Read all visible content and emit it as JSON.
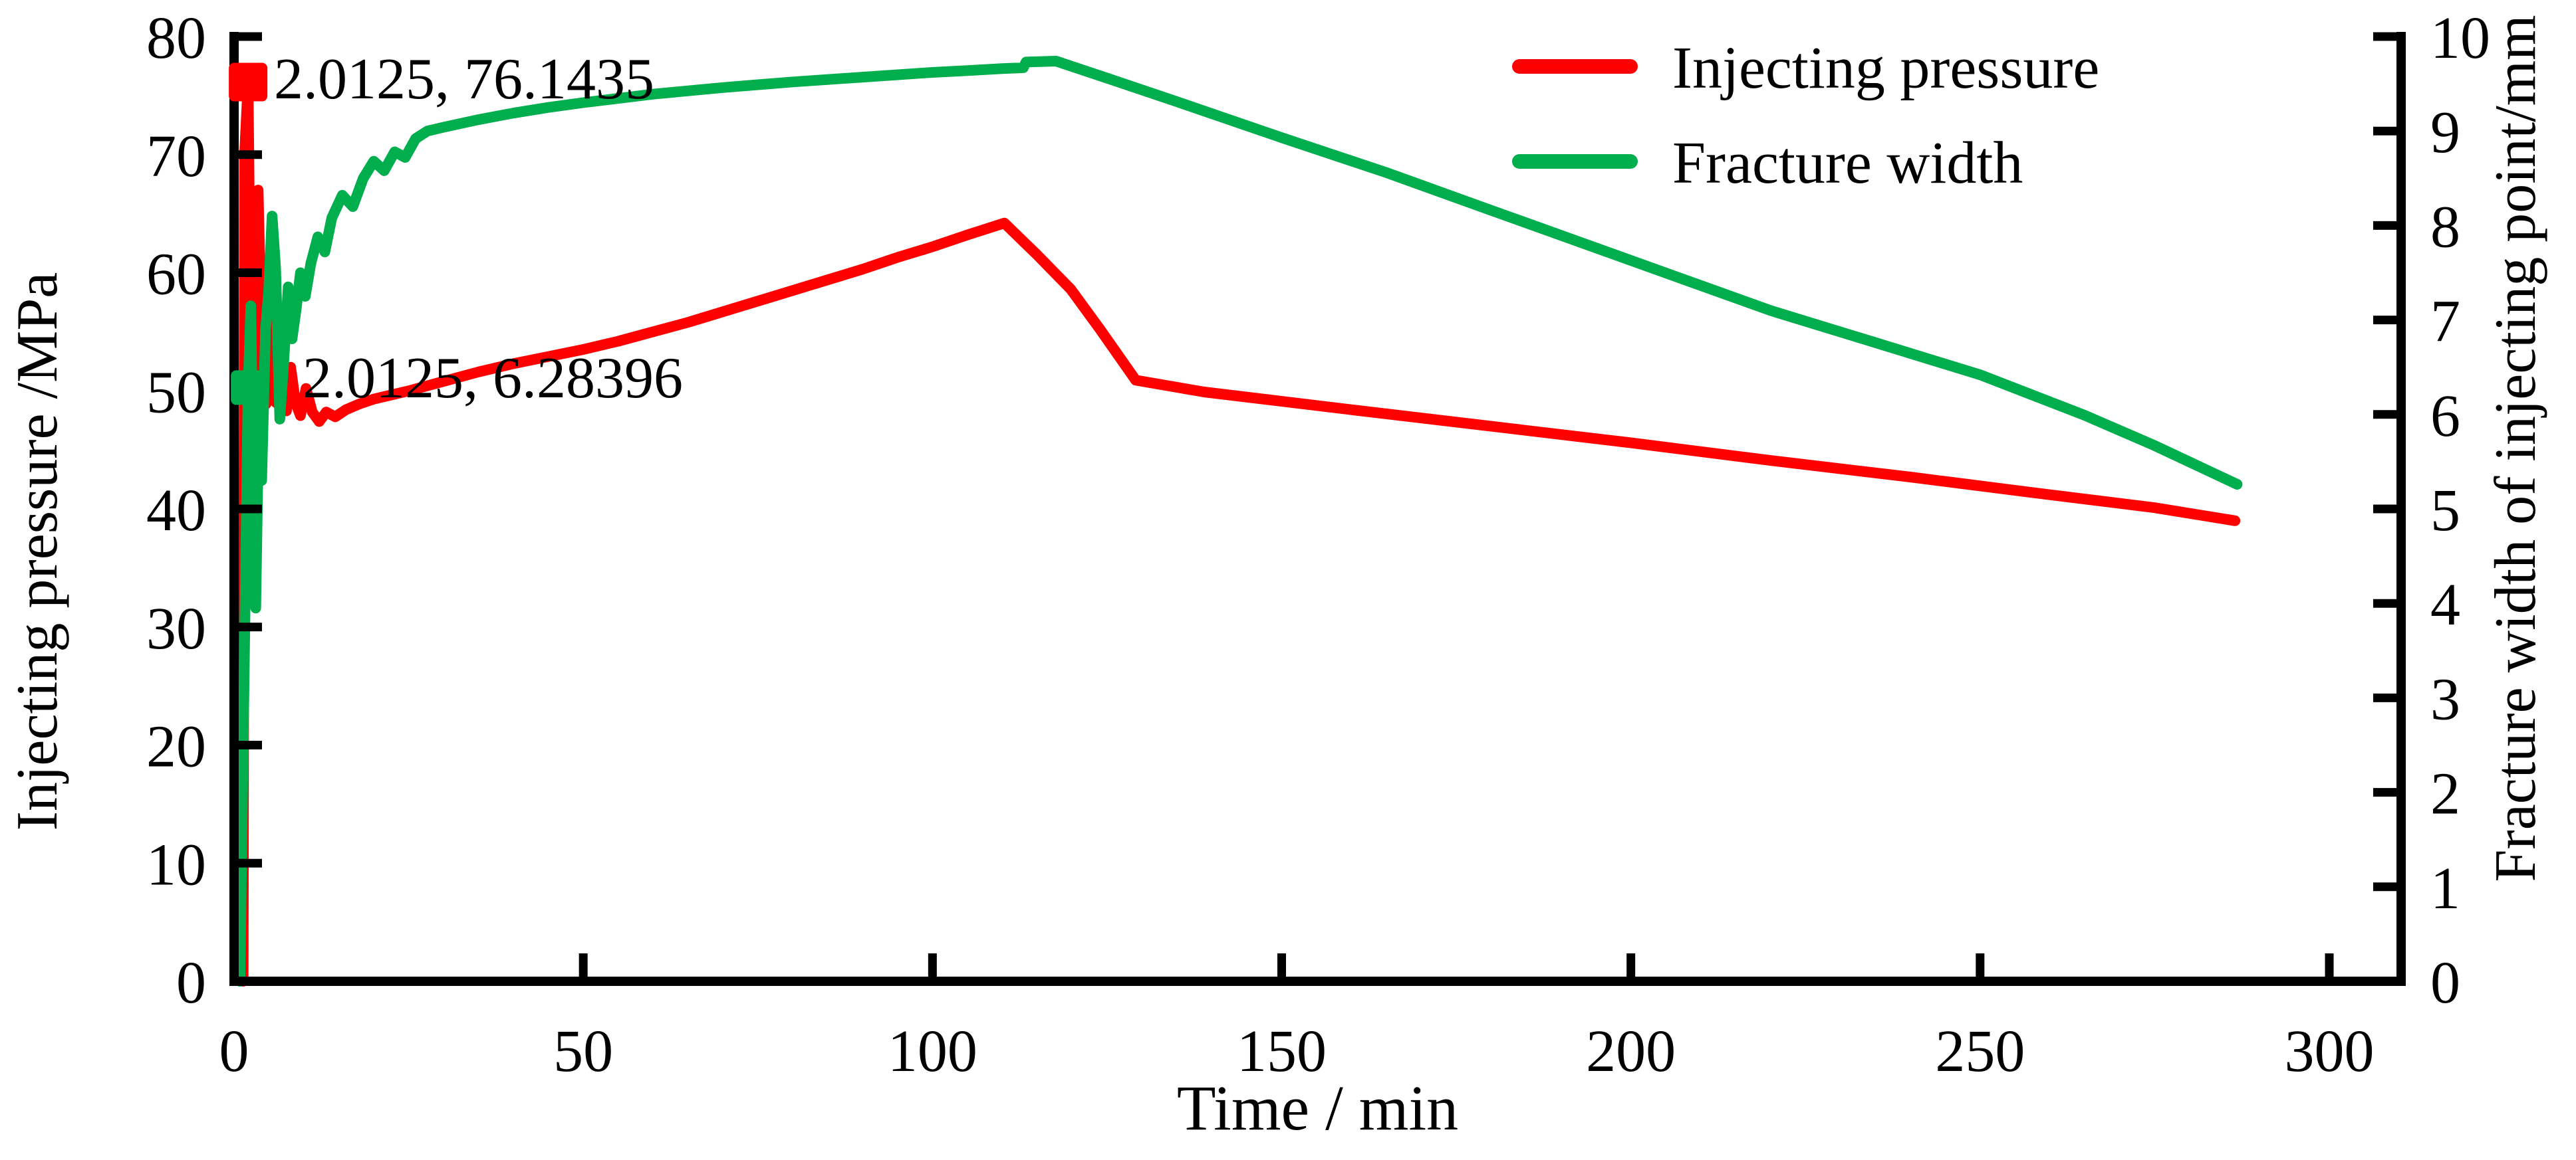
{
  "page": {
    "background": "#ffffff",
    "text_color": "#000000"
  },
  "chart_data": {
    "type": "line",
    "title": "",
    "xlabel": "Time / min",
    "ylabel_left": "Injecting pressure /MPa",
    "ylabel_right": "Fracture width of injecting point/mm",
    "grid": false,
    "x_axis": {
      "min": 0,
      "max": 310,
      "ticks": [
        0,
        50,
        100,
        150,
        200,
        250,
        300
      ]
    },
    "y_axis_left": {
      "min": 0,
      "max": 80,
      "ticks": [
        0,
        10,
        20,
        30,
        40,
        50,
        60,
        70,
        80
      ]
    },
    "y_axis_right": {
      "min": 0,
      "max": 10,
      "ticks": [
        0,
        1,
        2,
        3,
        4,
        5,
        6,
        7,
        8,
        9,
        10
      ]
    },
    "legend": {
      "position": "top-right",
      "entries": [
        {
          "label": "Injecting pressure",
          "color": "#ff0000",
          "series": "pressure"
        },
        {
          "label": "Fracture width",
          "color": "#00ae4d",
          "series": "width"
        }
      ]
    },
    "annotations": [
      {
        "text": "2.0125, 76.1435",
        "x": 2.0125,
        "y": 76.1435,
        "axis": "left",
        "marker": "square",
        "color": "#ff0000"
      },
      {
        "text": "2.0125, 6.28396",
        "x": 2.0125,
        "y": 6.28396,
        "axis": "right",
        "marker": "square",
        "color": "#00ae4d"
      }
    ],
    "series": [
      {
        "name": "Injecting pressure",
        "axis": "left",
        "color": "#ff0000",
        "points": [
          [
            1.3,
            0
          ],
          [
            1.5,
            70
          ],
          [
            2.0125,
            76.1435
          ],
          [
            2.4,
            53
          ],
          [
            2.7,
            50.2
          ],
          [
            3.0,
            55
          ],
          [
            3.2,
            52
          ],
          [
            3.45,
            67
          ],
          [
            3.8,
            58
          ],
          [
            4.2,
            50
          ],
          [
            4.6,
            48.9
          ],
          [
            5.1,
            57
          ],
          [
            5.5,
            53
          ],
          [
            6.0,
            49
          ],
          [
            6.5,
            53.5
          ],
          [
            7.0,
            50
          ],
          [
            7.5,
            48.3
          ],
          [
            8.1,
            52
          ],
          [
            8.8,
            49
          ],
          [
            9.5,
            47.9
          ],
          [
            10.3,
            50.2
          ],
          [
            11.2,
            48.2
          ],
          [
            12.2,
            47.4
          ],
          [
            13.2,
            48.2
          ],
          [
            14.5,
            47.8
          ],
          [
            16,
            48.4
          ],
          [
            18,
            48.9
          ],
          [
            20,
            49.3
          ],
          [
            25,
            50.0
          ],
          [
            30,
            50.8
          ],
          [
            35,
            51.6
          ],
          [
            40,
            52.3
          ],
          [
            45,
            52.9
          ],
          [
            50,
            53.5
          ],
          [
            55,
            54.2
          ],
          [
            60,
            55.0
          ],
          [
            65,
            55.8
          ],
          [
            70,
            56.7
          ],
          [
            75,
            57.6
          ],
          [
            80,
            58.5
          ],
          [
            85,
            59.4
          ],
          [
            90,
            60.3
          ],
          [
            95,
            61.3
          ],
          [
            100,
            62.2
          ],
          [
            105,
            63.2
          ],
          [
            110.3,
            64.2
          ],
          [
            115,
            61.5
          ],
          [
            119.8,
            58.6
          ],
          [
            124,
            55.2
          ],
          [
            129.1,
            50.9
          ],
          [
            138.9,
            49.9
          ],
          [
            160,
            48.4
          ],
          [
            180,
            47.0
          ],
          [
            200,
            45.6
          ],
          [
            220,
            44.1
          ],
          [
            240,
            42.7
          ],
          [
            260,
            41.2
          ],
          [
            275,
            40.1
          ],
          [
            286.5,
            39.0
          ]
        ]
      },
      {
        "name": "Fracture width",
        "axis": "right",
        "color": "#00ae4d",
        "points": [
          [
            0.85,
            0
          ],
          [
            2.0125,
            6.28396
          ],
          [
            2.4,
            7.15
          ],
          [
            2.7,
            5.5
          ],
          [
            3.1,
            3.95
          ],
          [
            3.55,
            6.05
          ],
          [
            3.95,
            5.3
          ],
          [
            4.5,
            6.9
          ],
          [
            4.95,
            7.3
          ],
          [
            5.45,
            8.1
          ],
          [
            5.95,
            7.55
          ],
          [
            6.55,
            5.95
          ],
          [
            7.15,
            6.6
          ],
          [
            7.75,
            7.35
          ],
          [
            8.3,
            6.8
          ],
          [
            8.9,
            7.12
          ],
          [
            9.5,
            7.5
          ],
          [
            10.2,
            7.25
          ],
          [
            11,
            7.6
          ],
          [
            12,
            7.88
          ],
          [
            13,
            7.72
          ],
          [
            14,
            8.08
          ],
          [
            15.5,
            8.32
          ],
          [
            17,
            8.2
          ],
          [
            18.5,
            8.5
          ],
          [
            20,
            8.68
          ],
          [
            21.5,
            8.58
          ],
          [
            23,
            8.78
          ],
          [
            24.5,
            8.72
          ],
          [
            26,
            8.92
          ],
          [
            27.7,
            9.0
          ],
          [
            30,
            9.04
          ],
          [
            35,
            9.12
          ],
          [
            40,
            9.19
          ],
          [
            45,
            9.25
          ],
          [
            50,
            9.3
          ],
          [
            60,
            9.39
          ],
          [
            70,
            9.46
          ],
          [
            80,
            9.52
          ],
          [
            90,
            9.57
          ],
          [
            100,
            9.62
          ],
          [
            105,
            9.64
          ],
          [
            110,
            9.66
          ],
          [
            113,
            9.67
          ],
          [
            113.4,
            9.73
          ],
          [
            117.7,
            9.74
          ],
          [
            125,
            9.56
          ],
          [
            135,
            9.31
          ],
          [
            150,
            8.93
          ],
          [
            165,
            8.56
          ],
          [
            180,
            8.16
          ],
          [
            200,
            7.63
          ],
          [
            220,
            7.1
          ],
          [
            235,
            6.76
          ],
          [
            250,
            6.42
          ],
          [
            265,
            5.99
          ],
          [
            275,
            5.67
          ],
          [
            286.8,
            5.26
          ]
        ]
      }
    ]
  }
}
